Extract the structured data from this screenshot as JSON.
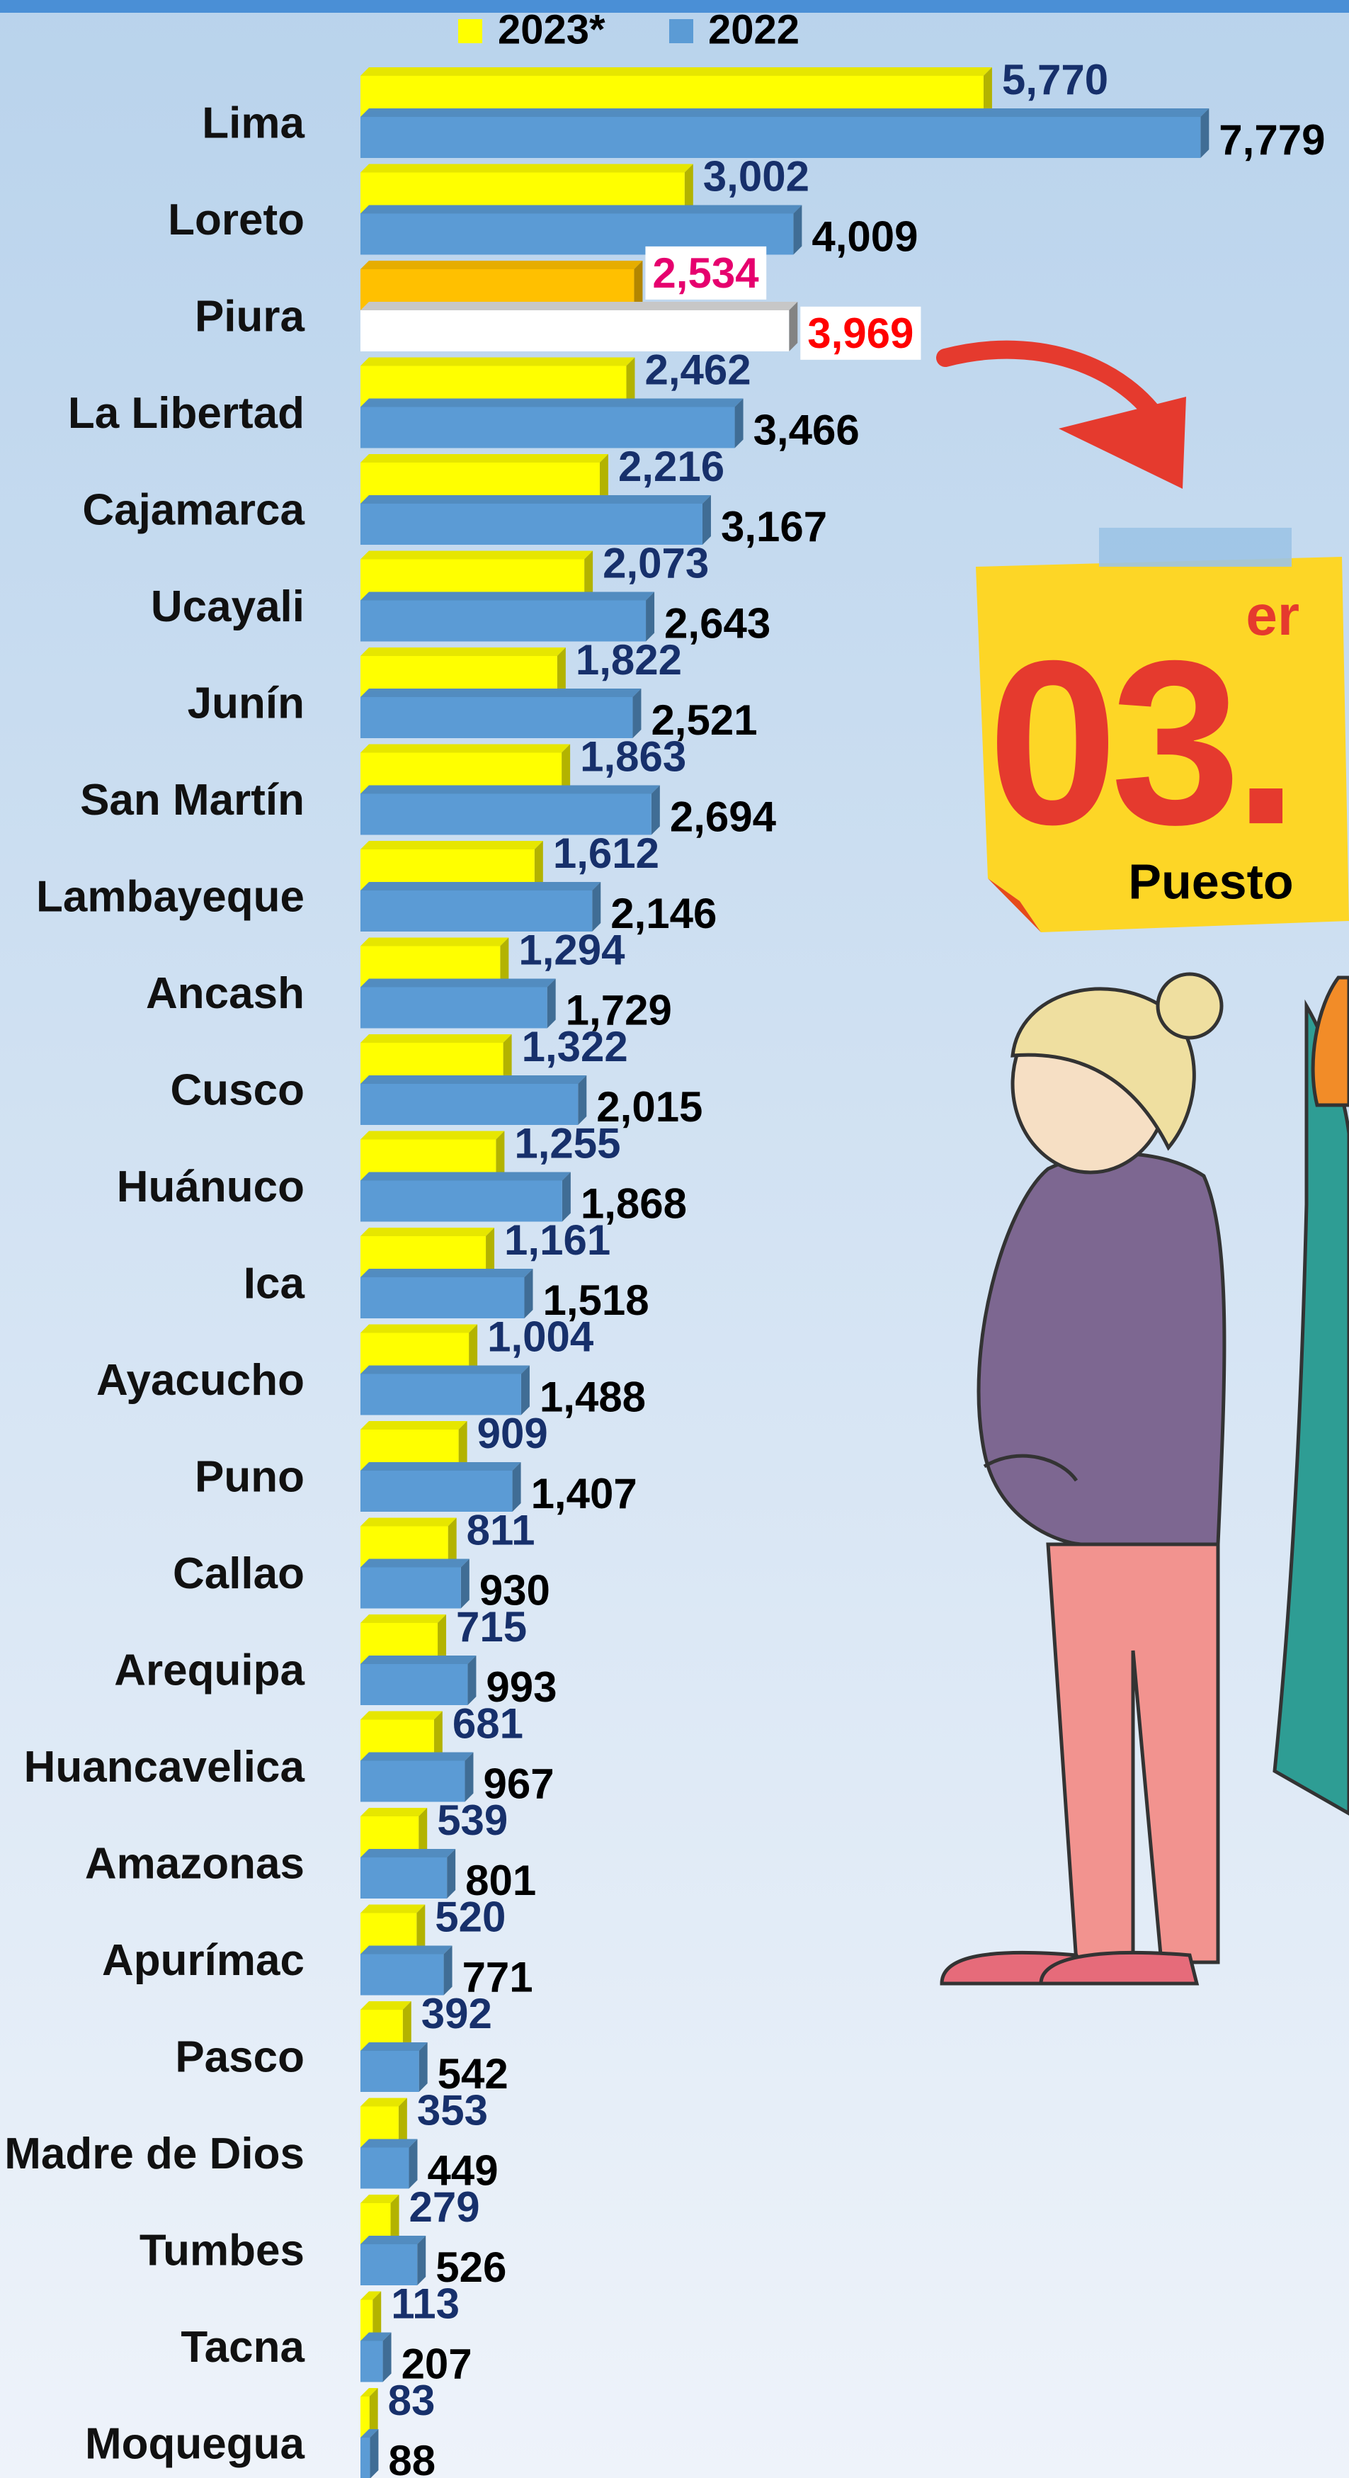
{
  "chart_data": {
    "type": "bar",
    "orientation": "horizontal",
    "categories": [
      "Lima",
      "Loreto",
      "Piura",
      "La Libertad",
      "Cajamarca",
      "Ucayali",
      "Junín",
      "San Martín",
      "Lambayeque",
      "Ancash",
      "Cusco",
      "Huánuco",
      "Ica",
      "Ayacucho",
      "Puno",
      "Callao",
      "Arequipa",
      "Huancavelica",
      "Amazonas",
      "Apurímac",
      "Pasco",
      "Madre de Dios",
      "Tumbes",
      "Tacna",
      "Moquegua"
    ],
    "series": [
      {
        "name": "2023*",
        "color": "#ffff00",
        "label_color": "#17306b",
        "values": [
          5770,
          3002,
          2534,
          2462,
          2216,
          2073,
          1822,
          1863,
          1612,
          1294,
          1322,
          1255,
          1161,
          1004,
          909,
          811,
          715,
          681,
          539,
          520,
          392,
          353,
          279,
          113,
          83
        ],
        "value_labels": [
          "5,770",
          "3,002",
          "2,534",
          "2,462",
          "2,216",
          "2,073",
          "1,822",
          "1,863",
          "1,612",
          "1,294",
          "1,322",
          "1,255",
          "1,161",
          "1,004",
          "909",
          "811",
          "715",
          "681",
          "539",
          "520",
          "392",
          "353",
          "279",
          "113",
          "83"
        ]
      },
      {
        "name": "2022",
        "color": "#5b9bd5",
        "label_color": "#000000",
        "values": [
          7779,
          4009,
          3969,
          3466,
          3167,
          2643,
          2521,
          2694,
          2146,
          1729,
          2015,
          1868,
          1518,
          1488,
          1407,
          930,
          993,
          967,
          801,
          771,
          542,
          449,
          526,
          207,
          88
        ],
        "value_labels": [
          "7,779",
          "4,009",
          "3,969",
          "3,466",
          "3,167",
          "2,643",
          "2,521",
          "2,694",
          "2,146",
          "1,729",
          "2,015",
          "1,868",
          "1,518",
          "1,488",
          "1,407",
          "930",
          "993",
          "967",
          "801",
          "771",
          "542",
          "449",
          "526",
          "207",
          "88"
        ]
      }
    ],
    "xlim": [
      0,
      8000
    ],
    "highlight": {
      "category": 2,
      "colors": [
        "#ffc000",
        "#ffffff"
      ],
      "label_colors": [
        "#e6006e",
        "#ff0000"
      ]
    },
    "annotations": {
      "rank": "03.",
      "suffix": "er",
      "caption": "Puesto"
    }
  }
}
